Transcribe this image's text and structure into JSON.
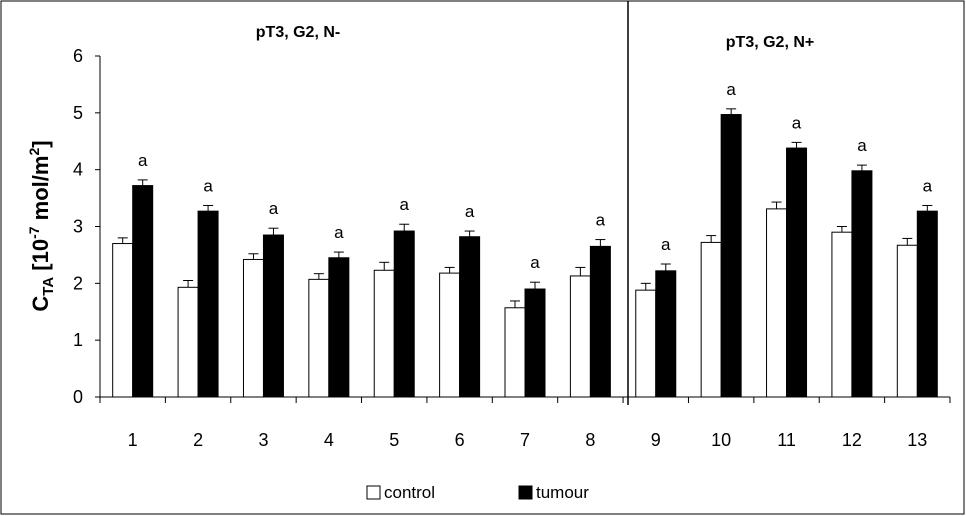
{
  "chart_data": {
    "type": "bar",
    "categories": [
      "1",
      "2",
      "3",
      "4",
      "5",
      "6",
      "7",
      "8",
      "9",
      "10",
      "11",
      "12",
      "13"
    ],
    "series": [
      {
        "name": "control",
        "color": "#ffffff",
        "values": [
          2.7,
          1.93,
          2.42,
          2.07,
          2.23,
          2.18,
          1.57,
          2.13,
          1.88,
          2.72,
          3.31,
          2.9,
          2.67
        ],
        "errors": [
          0.1,
          0.12,
          0.1,
          0.1,
          0.14,
          0.1,
          0.12,
          0.15,
          0.12,
          0.12,
          0.12,
          0.1,
          0.12
        ]
      },
      {
        "name": "tumour",
        "color": "#000000",
        "values": [
          3.72,
          3.27,
          2.85,
          2.45,
          2.92,
          2.82,
          1.9,
          2.65,
          2.22,
          4.97,
          4.38,
          3.98,
          3.27
        ],
        "errors": [
          0.1,
          0.1,
          0.12,
          0.1,
          0.12,
          0.1,
          0.12,
          0.12,
          0.12,
          0.1,
          0.1,
          0.1,
          0.1
        ]
      }
    ],
    "annotations": [
      "a",
      "a",
      "a",
      "a",
      "a",
      "a",
      "a",
      "a",
      "a",
      "a",
      "a",
      "a",
      "a"
    ],
    "groups": [
      {
        "label": "pT3, G2, N-",
        "from": 0,
        "to": 7
      },
      {
        "label": "pT3, G2, N+",
        "from": 8,
        "to": 12
      }
    ],
    "ylabel": {
      "main": "C",
      "sub": "TA",
      "bracket_open": " [10",
      "exp1": "-7",
      "unit": " mol/m",
      "exp2": "2",
      "bracket_close": "]"
    },
    "ylim": [
      0,
      6
    ],
    "yticks": [
      "0",
      "1",
      "2",
      "3",
      "4",
      "5",
      "6"
    ],
    "legend_position": "bottom-center",
    "grid": false
  }
}
